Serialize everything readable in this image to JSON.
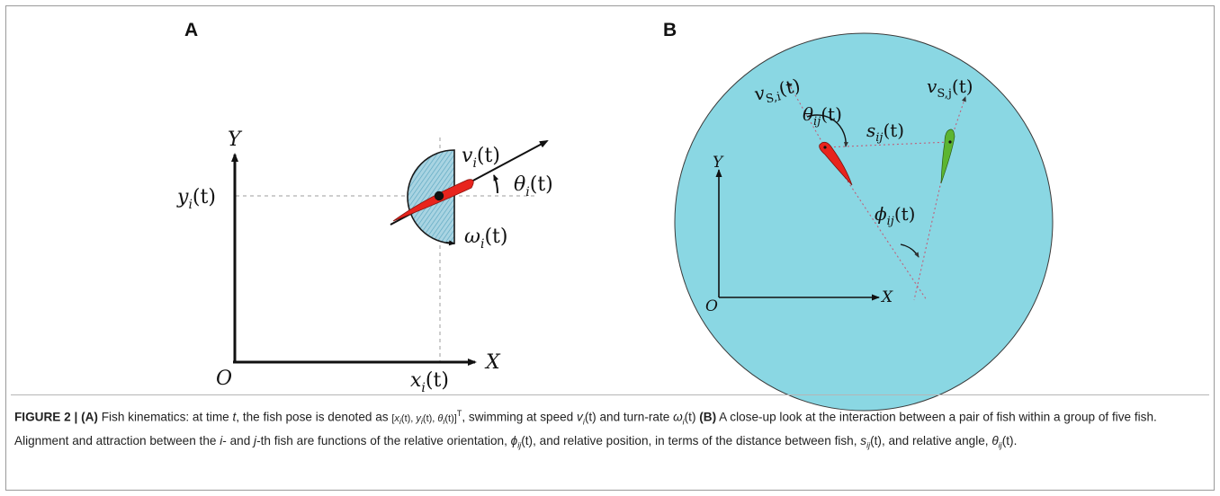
{
  "panel_a": {
    "label": "A",
    "axis_y": "Y",
    "axis_x": "X",
    "origin": "O",
    "y_coord": "y",
    "y_coord_sub": "i",
    "y_coord_arg": "(t)",
    "x_coord": "x",
    "x_coord_sub": "i",
    "x_coord_arg": "(t)",
    "speed": "v",
    "speed_sub": "i",
    "speed_arg": "(t)",
    "heading": "θ",
    "heading_sub": "i",
    "heading_arg": "(t)",
    "turn_rate": "ω",
    "turn_rate_sub": "i",
    "turn_rate_arg": "(t)",
    "fish_color": "#e8241d",
    "hatch_color": "#6fb6cc"
  },
  "panel_b": {
    "label": "B",
    "axis_y": "Y",
    "axis_x": "X",
    "origin": "O",
    "v_i": "v",
    "v_i_sub": "S,i",
    "v_i_arg": "(t)",
    "v_j": "v",
    "v_j_sub": "S,j",
    "v_j_arg": "(t)",
    "theta_ij": "θ",
    "theta_ij_sub": "ij",
    "theta_ij_arg": "(t)",
    "s_ij": "s",
    "s_ij_sub": "ij",
    "s_ij_arg": "(t)",
    "phi_ij": "ϕ",
    "phi_ij_sub": "ij",
    "phi_ij_arg": "(t)",
    "tank_color": "#8ad7e3",
    "fish_i_color": "#e8241d",
    "fish_j_color": "#5cb531"
  },
  "caption": {
    "figure_label": "FIGURE 2 | ",
    "a_tag": "(A)",
    "a_text_1": " Fish kinematics: at time ",
    "t": "t",
    "a_text_2": ", the fish pose is denoted as ",
    "pose_open": "[",
    "pose_x": "x",
    "pose_i1": "i",
    "pose_t1": "(t), ",
    "pose_y": "y",
    "pose_i2": "i",
    "pose_t2": "(t), ",
    "pose_theta": "θ",
    "pose_i3": "i",
    "pose_t3": "(t)]",
    "pose_sup": "T",
    "a_text_3": ", swimming at speed ",
    "v": "v",
    "v_sub": "i",
    "v_arg": "(t)",
    "a_text_4": " and turn-rate ",
    "omega": "ω",
    "omega_sub": "i",
    "omega_arg": "(t)",
    "b_tag": "(B)",
    "b_text_1": " A close-up look at the interaction between a pair of fish within a group of five fish. Alignment and attraction between the ",
    "i": "i",
    "b_text_2": "- and ",
    "j": "j",
    "b_text_3": "-th fish are functions of the relative orientation, ",
    "phi": "ϕ",
    "phi_sub": "ij",
    "phi_arg": "(t)",
    "b_text_4": ", and relative position, in terms of the distance between fish, ",
    "s": "s",
    "s_sub": "ij",
    "s_arg": "(t)",
    "b_text_5": ", and relative angle, ",
    "theta": "θ",
    "theta_sub": "ij",
    "theta_arg": "(t)",
    "b_text_6": "."
  }
}
